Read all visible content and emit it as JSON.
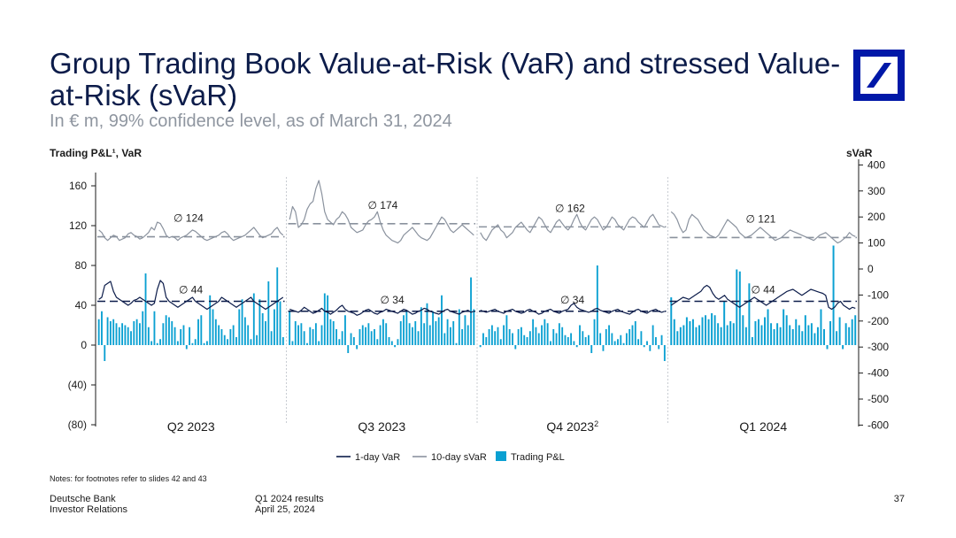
{
  "title": "Group Trading Book Value-at-Risk (VaR) and stressed Value-at-Risk (sVaR)",
  "subtitle": "In € m, 99% confidence level, as of March 31, 2024",
  "colors": {
    "var": "#0c1c4a",
    "svar": "#8a929e",
    "pnl": "#0aa0d2",
    "brand": "#0018a8"
  },
  "chart_data": {
    "type": "bar+line",
    "left_axis_title": "Trading P&L¹, VaR",
    "right_axis_title": "sVaR",
    "left_ylim": [
      -80,
      170
    ],
    "right_ylim": [
      -600,
      400
    ],
    "left_ticks": [
      "160",
      "120",
      "80",
      "40",
      "0",
      "(40)",
      "(80)"
    ],
    "right_ticks": [
      "400",
      "300",
      "200",
      "100",
      "0",
      "-100",
      "-200",
      "-300",
      "-400",
      "-500",
      "-600"
    ],
    "quarters": [
      {
        "label": "Q2 2023",
        "sup": "",
        "var_avg": 44,
        "var_avg_label": "∅ 44",
        "svar_avg": 124,
        "svar_avg_label": "∅ 124"
      },
      {
        "label": "Q3 2023",
        "sup": "",
        "var_avg": 34,
        "var_avg_label": "∅ 34",
        "svar_avg": 174,
        "svar_avg_label": "∅ 174"
      },
      {
        "label": "Q4 2023",
        "sup": "2",
        "var_avg": 34,
        "var_avg_label": "∅ 34",
        "svar_avg": 162,
        "svar_avg_label": "∅ 162"
      },
      {
        "label": "Q1 2024",
        "sup": "",
        "var_avg": 44,
        "var_avg_label": "∅ 44",
        "svar_avg": 121,
        "svar_avg_label": "∅ 121"
      }
    ],
    "series": [
      {
        "name": "1-day VaR",
        "axis": "left",
        "kind": "line",
        "values": [
          [
            46,
            48,
            60,
            62,
            64,
            54,
            48,
            46,
            44,
            42,
            40,
            42,
            45,
            46,
            48,
            46,
            44,
            42,
            40,
            42,
            56,
            65,
            62,
            48,
            44,
            42,
            40,
            38,
            40,
            42,
            44,
            46,
            48,
            44,
            42,
            40,
            38,
            36,
            38,
            40,
            42,
            44,
            48,
            46,
            44,
            42,
            40,
            38,
            40,
            42,
            44,
            46,
            48,
            44,
            42,
            40,
            38,
            36,
            38,
            40,
            42,
            44,
            46,
            48
          ],
          [
            36,
            35,
            34,
            33,
            35,
            38,
            36,
            34,
            32,
            33,
            35,
            37,
            34,
            33,
            31,
            33,
            35,
            38,
            40,
            36,
            34,
            33,
            32,
            30,
            31,
            33,
            35,
            36,
            34,
            32,
            31,
            33,
            34,
            36,
            35,
            34,
            33,
            32,
            34,
            36,
            35,
            33,
            31,
            32,
            34,
            35,
            37,
            36,
            34,
            33,
            32,
            31,
            33,
            35,
            36,
            34,
            33,
            32,
            31,
            33,
            34,
            35,
            33,
            34
          ],
          [
            35,
            34,
            33,
            34,
            35,
            36,
            34,
            33,
            32,
            34,
            35,
            36,
            34,
            33,
            32,
            33,
            35,
            36,
            34,
            33,
            31,
            32,
            34,
            35,
            36,
            34,
            33,
            32,
            34,
            35,
            36,
            40,
            42,
            38,
            36,
            35,
            34,
            33,
            34,
            36,
            37,
            35,
            34,
            33,
            32,
            34,
            35,
            36,
            34,
            33,
            32,
            31,
            33,
            35,
            36,
            34,
            33,
            32,
            34,
            35,
            36,
            34,
            33,
            34
          ],
          [
            40,
            42,
            44,
            46,
            48,
            47,
            46,
            48,
            50,
            52,
            54,
            58,
            60,
            58,
            52,
            48,
            46,
            48,
            50,
            46,
            44,
            42,
            40,
            38,
            40,
            42,
            44,
            46,
            48,
            46,
            44,
            42,
            40,
            42,
            44,
            46,
            48,
            50,
            52,
            54,
            55,
            56,
            54,
            52,
            50,
            52,
            54,
            56,
            55,
            54,
            53,
            52,
            50,
            38,
            36,
            38,
            42,
            44,
            40,
            38,
            36,
            38,
            37
          ]
        ]
      },
      {
        "name": "10-day sVaR",
        "axis": "right",
        "kind": "line",
        "values": [
          [
            150,
            140,
            120,
            110,
            120,
            130,
            125,
            110,
            115,
            120,
            135,
            140,
            130,
            125,
            115,
            120,
            130,
            140,
            160,
            150,
            180,
            175,
            155,
            130,
            120,
            125,
            120,
            110,
            120,
            125,
            130,
            140,
            150,
            145,
            135,
            125,
            115,
            110,
            115,
            120,
            125,
            130,
            140,
            145,
            135,
            120,
            110,
            115,
            120,
            125,
            130,
            140,
            150,
            160,
            145,
            130,
            120,
            125,
            130,
            135,
            150,
            160,
            140,
            130
          ],
          [
            190,
            240,
            220,
            160,
            170,
            190,
            230,
            250,
            260,
            310,
            340,
            290,
            220,
            190,
            180,
            170,
            190,
            200,
            220,
            210,
            190,
            160,
            150,
            140,
            145,
            150,
            170,
            185,
            190,
            200,
            220,
            180,
            150,
            130,
            120,
            110,
            105,
            100,
            110,
            130,
            140,
            150,
            160,
            145,
            130,
            120,
            115,
            110,
            120,
            140,
            160,
            180,
            200,
            190,
            170,
            150,
            140,
            150,
            160,
            170,
            160,
            150,
            140,
            130
          ],
          [
            140,
            120,
            110,
            130,
            150,
            160,
            170,
            150,
            140,
            120,
            130,
            140,
            160,
            170,
            180,
            165,
            150,
            140,
            160,
            180,
            200,
            190,
            170,
            150,
            140,
            160,
            180,
            190,
            175,
            160,
            150,
            165,
            190,
            210,
            180,
            160,
            150,
            170,
            190,
            200,
            190,
            170,
            150,
            160,
            180,
            200,
            190,
            170,
            160,
            150,
            170,
            190,
            200,
            195,
            180,
            170,
            160,
            180,
            200,
            210,
            190,
            170,
            165,
            160
          ],
          [
            220,
            210,
            190,
            160,
            140,
            150,
            190,
            210,
            200,
            190,
            170,
            150,
            140,
            130,
            125,
            120,
            130,
            150,
            170,
            190,
            180,
            170,
            160,
            140,
            130,
            120,
            125,
            130,
            140,
            150,
            160,
            150,
            140,
            130,
            120,
            110,
            115,
            120,
            130,
            140,
            150,
            145,
            140,
            135,
            130,
            125,
            120,
            115,
            110,
            120,
            130,
            135,
            140,
            130,
            120,
            110,
            100,
            105,
            115,
            125,
            140,
            130,
            125
          ]
        ]
      },
      {
        "name": "Trading P&L",
        "axis": "left",
        "kind": "bar",
        "values": [
          [
            26,
            34,
            -16,
            28,
            24,
            26,
            22,
            18,
            22,
            20,
            18,
            14,
            24,
            26,
            22,
            34,
            72,
            18,
            4,
            34,
            2,
            6,
            22,
            30,
            28,
            24,
            18,
            4,
            16,
            20,
            -4,
            18,
            2,
            6,
            26,
            30,
            2,
            4,
            50,
            36,
            26,
            20,
            16,
            10,
            6,
            16,
            20,
            8,
            36,
            46,
            28,
            20,
            6,
            52,
            10,
            46,
            32,
            24,
            64,
            14,
            36,
            78,
            44,
            8
          ],
          [
            34,
            4,
            24,
            20,
            22,
            14,
            2,
            18,
            16,
            22,
            4,
            20,
            52,
            50,
            26,
            24,
            16,
            6,
            14,
            30,
            -8,
            12,
            8,
            -4,
            16,
            20,
            18,
            22,
            14,
            16,
            6,
            20,
            26,
            22,
            8,
            4,
            -2,
            6,
            24,
            30,
            34,
            22,
            18,
            24,
            14,
            38,
            22,
            42,
            20,
            34,
            24,
            28,
            50,
            12,
            26,
            18,
            24,
            2,
            36,
            16,
            30,
            20,
            68,
            36
          ],
          [
            -2,
            12,
            8,
            16,
            20,
            14,
            18,
            6,
            20,
            30,
            16,
            12,
            -4,
            16,
            18,
            10,
            8,
            14,
            26,
            18,
            12,
            20,
            26,
            22,
            4,
            16,
            12,
            22,
            18,
            10,
            8,
            12,
            4,
            -2,
            20,
            14,
            8,
            10,
            -8,
            26,
            80,
            12,
            -6,
            16,
            20,
            12,
            4,
            6,
            10,
            2,
            12,
            16,
            20,
            24,
            6,
            14,
            -2,
            4,
            -6,
            20,
            8,
            -4,
            10,
            -16
          ],
          [
            48,
            26,
            14,
            18,
            20,
            28,
            24,
            26,
            18,
            20,
            28,
            30,
            26,
            32,
            30,
            22,
            18,
            44,
            20,
            24,
            22,
            76,
            74,
            30,
            18,
            62,
            8,
            24,
            26,
            20,
            28,
            36,
            22,
            16,
            22,
            18,
            36,
            30,
            20,
            16,
            26,
            20,
            14,
            30,
            20,
            22,
            12,
            18,
            36,
            16,
            -4,
            24,
            100,
            14,
            28,
            -4,
            22,
            18,
            26,
            30
          ]
        ]
      }
    ],
    "legend": [
      "1-day VaR",
      "10-day sVaR",
      "Trading P&L"
    ],
    "legend_placement": "bottom-center"
  },
  "notes": "Notes: for footnotes refer to slides 42 and 43",
  "footer": {
    "org_line1": "Deutsche Bank",
    "org_line2": "Investor Relations",
    "doc_line1": "Q1 2024 results",
    "doc_line2": "April 25, 2024",
    "page": "37"
  }
}
